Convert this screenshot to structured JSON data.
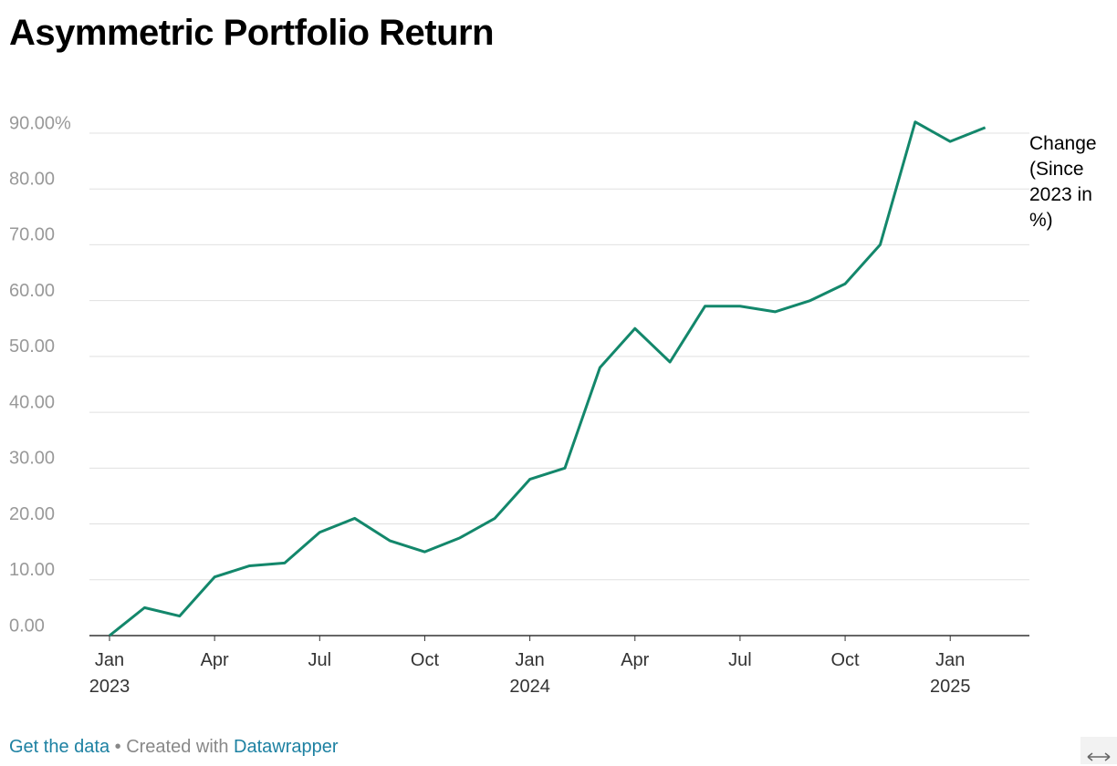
{
  "chart_data": {
    "type": "line",
    "title": "Asymmetric Portfolio Return",
    "x": [
      "2023-01",
      "2023-02",
      "2023-03",
      "2023-04",
      "2023-05",
      "2023-06",
      "2023-07",
      "2023-08",
      "2023-09",
      "2023-10",
      "2023-11",
      "2023-12",
      "2024-01",
      "2024-02",
      "2024-03",
      "2024-04",
      "2024-05",
      "2024-06",
      "2024-07",
      "2024-08",
      "2024-09",
      "2024-10",
      "2024-11",
      "2024-12",
      "2025-01",
      "2025-02"
    ],
    "series": [
      {
        "name": "Change (Since 2023 in %)",
        "color": "#13876b",
        "values": [
          0,
          5,
          3.5,
          10.5,
          12.5,
          13,
          18.5,
          21,
          17,
          15,
          17.5,
          21,
          28,
          30,
          48,
          55,
          49,
          59,
          59,
          58,
          60,
          63,
          70,
          92,
          88.5,
          91
        ]
      }
    ],
    "xlim": [
      "2023-01",
      "2025-03"
    ],
    "xticks": [
      {
        "value": "2023-01",
        "label": "Jan 2023"
      },
      {
        "value": "2023-04",
        "label": "Apr"
      },
      {
        "value": "2023-07",
        "label": "Jul"
      },
      {
        "value": "2023-10",
        "label": "Oct"
      },
      {
        "value": "2024-01",
        "label": "Jan 2024"
      },
      {
        "value": "2024-04",
        "label": "Apr"
      },
      {
        "value": "2024-07",
        "label": "Jul"
      },
      {
        "value": "2024-10",
        "label": "Oct"
      },
      {
        "value": "2025-01",
        "label": "Jan 2025"
      }
    ],
    "ylim": [
      0,
      98
    ],
    "yticks": [
      {
        "value": 0,
        "label": "0.00"
      },
      {
        "value": 10,
        "label": "10.00"
      },
      {
        "value": 20,
        "label": "20.00"
      },
      {
        "value": 30,
        "label": "30.00"
      },
      {
        "value": 40,
        "label": "40.00"
      },
      {
        "value": 50,
        "label": "50.00"
      },
      {
        "value": 60,
        "label": "60.00"
      },
      {
        "value": 70,
        "label": "70.00"
      },
      {
        "value": 80,
        "label": "80.00"
      },
      {
        "value": 90,
        "label": "90.00%"
      }
    ],
    "grid": true
  },
  "footer": {
    "get_data": "Get the data",
    "created_with": "• Created with",
    "datawrapper": "Datawrapper"
  }
}
